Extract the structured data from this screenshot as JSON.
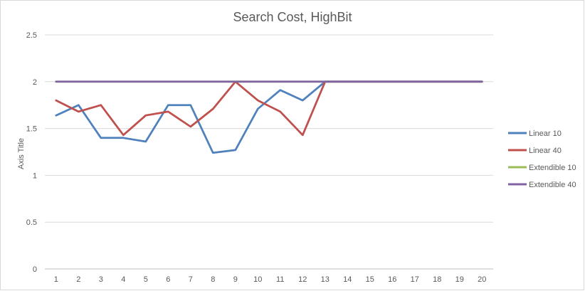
{
  "chart_data": {
    "type": "line",
    "title": "Search Cost, HighBit",
    "xlabel": "",
    "ylabel": "Axis Title",
    "categories": [
      1,
      2,
      3,
      4,
      5,
      6,
      7,
      8,
      9,
      10,
      11,
      12,
      13,
      14,
      15,
      16,
      17,
      18,
      19,
      20
    ],
    "yticks": [
      "0",
      "0.5",
      "1",
      "1.5",
      "2",
      "2.5"
    ],
    "ylim": [
      0,
      2.5
    ],
    "grid": "horizontal",
    "legend_position": "right",
    "series": [
      {
        "name": "Linear 10",
        "color": "#4f81bd",
        "values": [
          1.64,
          1.75,
          1.4,
          1.4,
          1.36,
          1.75,
          1.75,
          1.24,
          1.27,
          1.71,
          1.91,
          1.8,
          2,
          2,
          2,
          2,
          2,
          2,
          2,
          2
        ]
      },
      {
        "name": "Linear 40",
        "color": "#c0504d",
        "values": [
          1.8,
          1.68,
          1.75,
          1.43,
          1.64,
          1.68,
          1.52,
          1.71,
          2,
          1.8,
          1.68,
          1.43,
          2,
          2,
          2,
          2,
          2,
          2,
          2,
          2
        ]
      },
      {
        "name": "Extendible 10",
        "color": "#9bbb59",
        "values": [
          2,
          2,
          2,
          2,
          2,
          2,
          2,
          2,
          2,
          2,
          2,
          2,
          2,
          2,
          2,
          2,
          2,
          2,
          2,
          2
        ]
      },
      {
        "name": "Extendible 40",
        "color": "#8064a2",
        "values": [
          2,
          2,
          2,
          2,
          2,
          2,
          2,
          2,
          2,
          2,
          2,
          2,
          2,
          2,
          2,
          2,
          2,
          2,
          2,
          2
        ]
      }
    ]
  }
}
